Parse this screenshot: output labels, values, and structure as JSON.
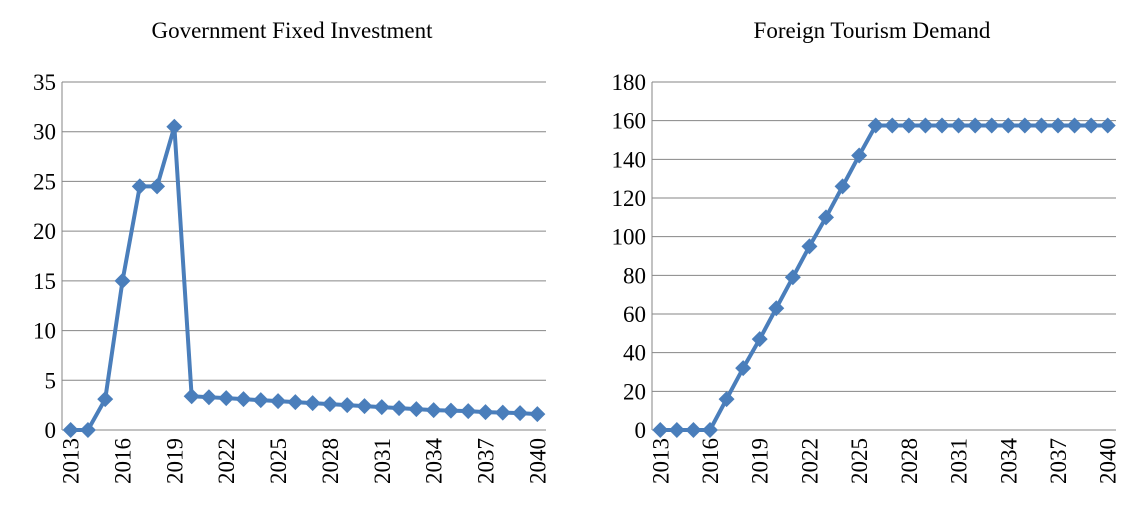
{
  "chart_data": [
    {
      "type": "line",
      "title": "Government Fixed Investment",
      "categories": [
        "2013",
        null,
        null,
        "2016",
        null,
        null,
        "2019",
        null,
        null,
        "2022",
        null,
        null,
        "2025",
        null,
        null,
        "2028",
        null,
        null,
        "2031",
        null,
        null,
        "2034",
        null,
        null,
        "2037",
        null,
        null,
        "2040"
      ],
      "series": [
        {
          "color": "#4a7ebb",
          "values": [
            0,
            0,
            3.1,
            15,
            24.5,
            24.5,
            30.5,
            3.4,
            3.3,
            3.2,
            3.1,
            3.0,
            2.9,
            2.8,
            2.7,
            2.6,
            2.5,
            2.4,
            2.3,
            2.2,
            2.1,
            2.0,
            1.95,
            1.9,
            1.8,
            1.75,
            1.7,
            1.6
          ]
        }
      ],
      "ylim": [
        0,
        35
      ],
      "yticks": [
        0,
        5,
        10,
        15,
        20,
        25,
        30,
        35
      ],
      "grid": true
    },
    {
      "type": "line",
      "title": "Foreign Tourism Demand",
      "categories": [
        "2013",
        null,
        null,
        "2016",
        null,
        null,
        "2019",
        null,
        null,
        "2022",
        null,
        null,
        "2025",
        null,
        null,
        "2028",
        null,
        null,
        "2031",
        null,
        null,
        "2034",
        null,
        null,
        "2037",
        null,
        null,
        "2040"
      ],
      "series": [
        {
          "color": "#4a7ebb",
          "values": [
            0,
            0,
            0,
            0,
            16,
            32,
            47,
            63,
            79,
            95,
            110,
            126,
            142,
            157.5,
            157.5,
            157.5,
            157.5,
            157.5,
            157.5,
            157.5,
            157.5,
            157.5,
            157.5,
            157.5,
            157.5,
            157.5,
            157.5,
            157.5
          ]
        }
      ],
      "ylim": [
        0,
        180
      ],
      "yticks": [
        0,
        20,
        40,
        60,
        80,
        100,
        120,
        140,
        160,
        180
      ],
      "grid": true
    }
  ]
}
